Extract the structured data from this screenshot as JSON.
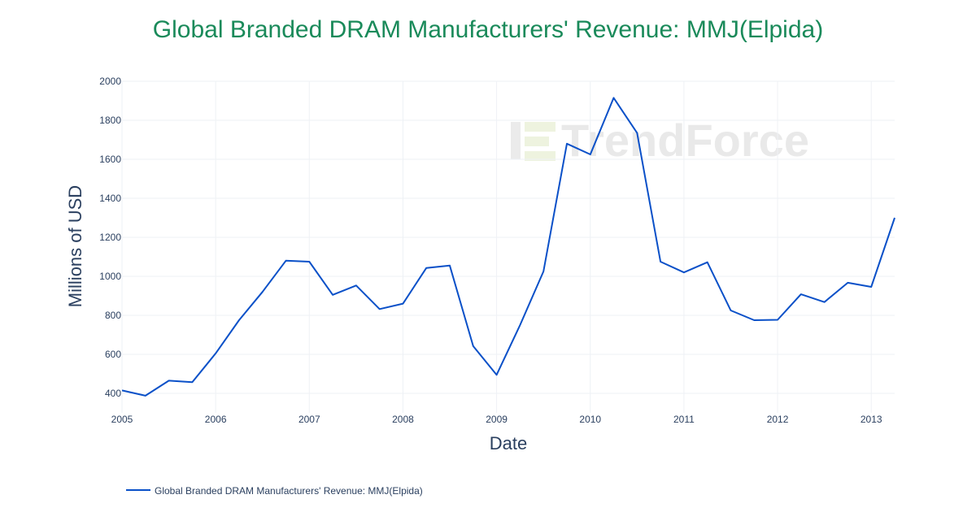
{
  "chart_data": {
    "type": "line",
    "title": "Global Branded DRAM Manufacturers' Revenue: MMJ(Elpida)",
    "xlabel": "Date",
    "ylabel": "Millions of USD",
    "xlim": [
      2005.0,
      2013.25
    ],
    "ylim": [
      300,
      2000
    ],
    "x_ticks": [
      "2005",
      "2006",
      "2007",
      "2008",
      "2009",
      "2010",
      "2011",
      "2012",
      "2013"
    ],
    "y_ticks": [
      400,
      600,
      800,
      1000,
      1200,
      1400,
      1600,
      1800,
      2000
    ],
    "grid": true,
    "legend_position": "bottom-left",
    "watermark": "TrendForce",
    "colors": {
      "line": "#0a50c8",
      "title": "#1a8a5a",
      "grid": "#eef1f5"
    },
    "series": [
      {
        "name": "Global Branded DRAM Manufacturers' Revenue: MMJ(Elpida)",
        "x": [
          "2005-Q1",
          "2005-Q2",
          "2005-Q3",
          "2005-Q4",
          "2006-Q1",
          "2006-Q2",
          "2006-Q3",
          "2006-Q4",
          "2007-Q1",
          "2007-Q2",
          "2007-Q3",
          "2007-Q4",
          "2008-Q1",
          "2008-Q2",
          "2008-Q3",
          "2008-Q4",
          "2009-Q1",
          "2009-Q2",
          "2009-Q3",
          "2009-Q4",
          "2010-Q1",
          "2010-Q2",
          "2010-Q3",
          "2010-Q4",
          "2011-Q1",
          "2011-Q2",
          "2011-Q3",
          "2011-Q4",
          "2012-Q1",
          "2012-Q2",
          "2012-Q3",
          "2012-Q4",
          "2013-Q1",
          "2013-Q2"
        ],
        "values": [
          415,
          388,
          465,
          457,
          605,
          775,
          920,
          1080,
          1075,
          905,
          953,
          832,
          860,
          1043,
          1055,
          642,
          495,
          750,
          1025,
          1680,
          1625,
          1915,
          1735,
          1075,
          1020,
          1072,
          825,
          775,
          777,
          908,
          868,
          967,
          946,
          1300
        ]
      }
    ]
  }
}
